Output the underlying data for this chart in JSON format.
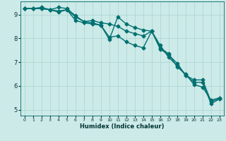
{
  "xlabel": "Humidex (Indice chaleur)",
  "background_color": "#cceae8",
  "grid_color": "#aad4d0",
  "line_color": "#007070",
  "xlim": [
    -0.5,
    23.5
  ],
  "ylim": [
    4.75,
    9.55
  ],
  "xticks": [
    0,
    1,
    2,
    3,
    4,
    5,
    6,
    7,
    8,
    9,
    10,
    11,
    12,
    13,
    14,
    15,
    16,
    17,
    18,
    19,
    20,
    21,
    22,
    23
  ],
  "yticks": [
    5,
    6,
    7,
    8,
    9
  ],
  "line1": [
    9.25,
    9.25,
    9.25,
    9.2,
    9.1,
    9.2,
    8.9,
    8.7,
    8.65,
    8.55,
    7.95,
    8.9,
    8.6,
    8.45,
    8.35,
    8.3,
    7.7,
    7.2,
    6.85,
    6.45,
    6.25,
    6.25,
    5.35,
    5.45
  ],
  "line2": [
    9.25,
    9.25,
    9.3,
    9.2,
    9.3,
    9.25,
    8.95,
    8.7,
    8.75,
    8.65,
    8.6,
    8.5,
    8.3,
    8.2,
    8.1,
    8.3,
    7.55,
    7.3,
    6.95,
    6.45,
    6.15,
    6.15,
    5.25,
    5.45
  ],
  "line3": [
    9.25,
    9.25,
    9.25,
    9.2,
    9.15,
    9.2,
    8.75,
    8.65,
    8.6,
    8.55,
    8.05,
    8.1,
    7.85,
    7.7,
    7.6,
    8.3,
    7.6,
    7.35,
    6.8,
    6.5,
    6.05,
    5.95,
    5.4,
    5.5
  ],
  "marker_size": 2.5,
  "line_width": 1.0
}
